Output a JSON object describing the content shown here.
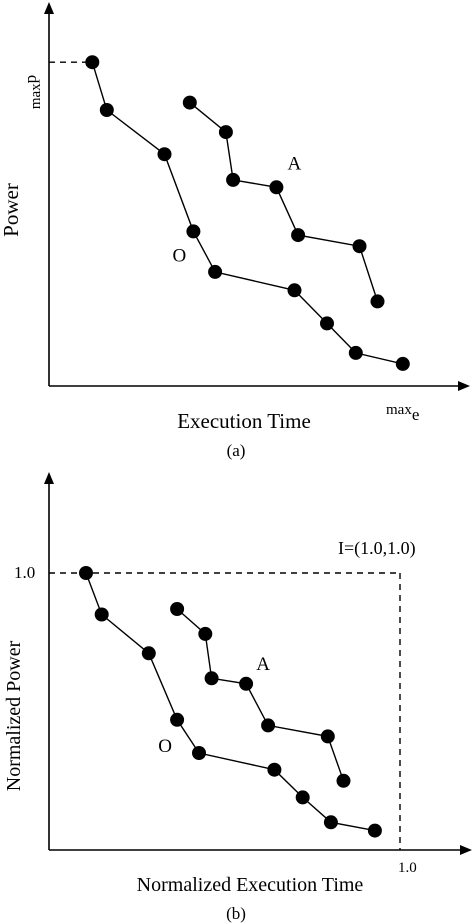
{
  "chart_data": [
    {
      "type": "scatter",
      "caption": "(a)",
      "xlabel": "Execution Time",
      "ylabel": "Power",
      "x_max_label": "max",
      "x_max_sub": "e",
      "y_max_label": "max",
      "y_max_sub": "p",
      "xlim": [
        0,
        100
      ],
      "ylim": [
        0,
        100
      ],
      "series": [
        {
          "name": "O",
          "points": [
            [
              12,
              88
            ],
            [
              16,
              75
            ],
            [
              32,
              63
            ],
            [
              40,
              42
            ],
            [
              46,
              31
            ],
            [
              68,
              26
            ],
            [
              77,
              17
            ],
            [
              85,
              9
            ],
            [
              98,
              6
            ]
          ]
        },
        {
          "name": "A",
          "points": [
            [
              39,
              77
            ],
            [
              49,
              69
            ],
            [
              51,
              56
            ],
            [
              63,
              54
            ],
            [
              69,
              41
            ],
            [
              86,
              38
            ],
            [
              91,
              23
            ]
          ]
        }
      ],
      "guides": [
        "max-power dashed line at y=88"
      ]
    },
    {
      "type": "scatter",
      "caption": "(b)",
      "xlabel": "Normalized Execution Time",
      "ylabel": "Normalized Power",
      "x_max_label": "1.0",
      "y_max_label": "1.0",
      "ideal_label": "I=(1.0,1.0)",
      "xlim": [
        0,
        1.1
      ],
      "ylim": [
        0,
        1.25
      ],
      "series": [
        {
          "name": "O",
          "points": [
            [
              0.0,
              1.0
            ],
            [
              0.05,
              0.85
            ],
            [
              0.2,
              0.71
            ],
            [
              0.29,
              0.47
            ],
            [
              0.36,
              0.35
            ],
            [
              0.6,
              0.29
            ],
            [
              0.69,
              0.19
            ],
            [
              0.78,
              0.1
            ],
            [
              0.92,
              0.07
            ]
          ]
        },
        {
          "name": "A",
          "points": [
            [
              0.29,
              0.87
            ],
            [
              0.38,
              0.78
            ],
            [
              0.4,
              0.62
            ],
            [
              0.51,
              0.6
            ],
            [
              0.58,
              0.45
            ],
            [
              0.77,
              0.41
            ],
            [
              0.82,
              0.25
            ]
          ]
        }
      ],
      "guides": [
        "dashed lines from point (1.0,1.0) to axes"
      ]
    }
  ]
}
